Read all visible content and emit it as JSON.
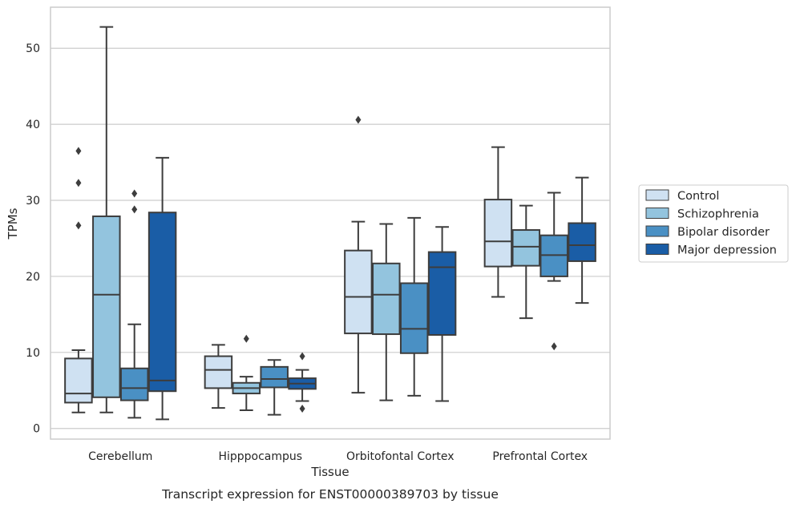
{
  "chart_data": {
    "type": "boxplot",
    "xlabel": "Tissue",
    "ylabel": "TPMs",
    "caption": "Transcript expression for ENST00000389703 by tissue",
    "ylim": [
      -1.4,
      55.4
    ],
    "yticks": [
      0,
      10,
      20,
      30,
      40,
      50
    ],
    "grid": "horizontal",
    "legend_position": "right",
    "categories": [
      "Cerebellum",
      "Hipppocampus",
      "Orbitofontal Cortex",
      "Prefrontal Cortex"
    ],
    "series": [
      {
        "name": "Control",
        "color": "#cfe1f2",
        "boxes": [
          {
            "whislo": 2.1,
            "q1": 3.4,
            "med": 4.6,
            "q3": 9.2,
            "whishi": 10.3,
            "fliers": [
              26.7,
              32.3,
              36.5
            ]
          },
          {
            "whislo": 2.7,
            "q1": 5.3,
            "med": 7.7,
            "q3": 9.5,
            "whishi": 11.0,
            "fliers": []
          },
          {
            "whislo": 4.7,
            "q1": 12.5,
            "med": 17.3,
            "q3": 23.4,
            "whishi": 27.2,
            "fliers": [
              40.6
            ]
          },
          {
            "whislo": 17.3,
            "q1": 21.3,
            "med": 24.6,
            "q3": 30.1,
            "whishi": 37.0,
            "fliers": []
          }
        ]
      },
      {
        "name": "Schizophrenia",
        "color": "#93c4de",
        "boxes": [
          {
            "whislo": 2.1,
            "q1": 4.1,
            "med": 17.6,
            "q3": 27.9,
            "whishi": 52.8,
            "fliers": []
          },
          {
            "whislo": 2.4,
            "q1": 4.6,
            "med": 5.3,
            "q3": 6.0,
            "whishi": 6.8,
            "fliers": [
              11.8
            ]
          },
          {
            "whislo": 3.7,
            "q1": 12.4,
            "med": 17.6,
            "q3": 21.7,
            "whishi": 26.9,
            "fliers": []
          },
          {
            "whislo": 14.5,
            "q1": 21.4,
            "med": 23.9,
            "q3": 26.1,
            "whishi": 29.3,
            "fliers": []
          }
        ]
      },
      {
        "name": "Bipolar disorder",
        "color": "#4a90c4",
        "boxes": [
          {
            "whislo": 1.4,
            "q1": 3.7,
            "med": 5.3,
            "q3": 7.9,
            "whishi": 13.7,
            "fliers": [
              28.8,
              30.9
            ]
          },
          {
            "whislo": 1.8,
            "q1": 5.4,
            "med": 6.5,
            "q3": 8.1,
            "whishi": 9.0,
            "fliers": []
          },
          {
            "whislo": 4.3,
            "q1": 9.9,
            "med": 13.1,
            "q3": 19.1,
            "whishi": 27.7,
            "fliers": []
          },
          {
            "whislo": 19.4,
            "q1": 20.0,
            "med": 22.8,
            "q3": 25.4,
            "whishi": 31.0,
            "fliers": [
              10.8
            ]
          }
        ]
      },
      {
        "name": "Major depression",
        "color": "#1a5da6",
        "boxes": [
          {
            "whislo": 1.2,
            "q1": 4.9,
            "med": 6.3,
            "q3": 28.4,
            "whishi": 35.6,
            "fliers": []
          },
          {
            "whislo": 3.6,
            "q1": 5.2,
            "med": 5.9,
            "q3": 6.6,
            "whishi": 7.7,
            "fliers": [
              2.6,
              9.5
            ]
          },
          {
            "whislo": 3.6,
            "q1": 12.3,
            "med": 21.2,
            "q3": 23.2,
            "whishi": 26.5,
            "fliers": []
          },
          {
            "whislo": 16.5,
            "q1": 22.0,
            "med": 24.1,
            "q3": 27.0,
            "whishi": 33.0,
            "fliers": []
          }
        ]
      }
    ]
  }
}
